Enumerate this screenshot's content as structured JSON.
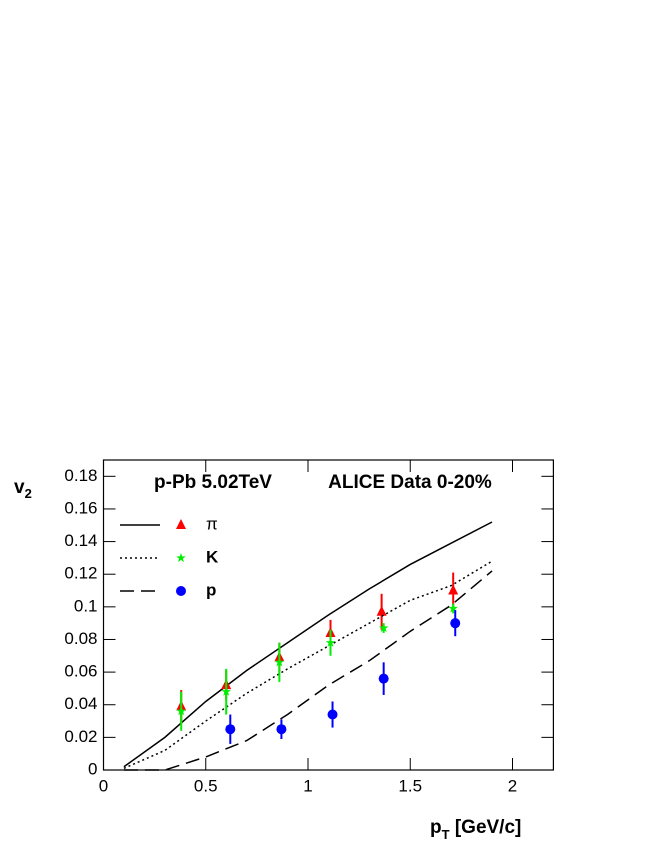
{
  "chart_data": {
    "type": "scatter",
    "annotations": [
      "p-Pb 5.02TeV",
      "ALICE Data 0-20%"
    ],
    "ylabel": [
      "v",
      "2"
    ],
    "xlabel": [
      "p",
      "T",
      " [GeV/c]"
    ],
    "xlim": [
      0,
      2.2
    ],
    "ylim": [
      0,
      0.19
    ],
    "xticks": [
      0,
      0.5,
      1,
      1.5,
      2
    ],
    "yticks": [
      0,
      0.02,
      0.04,
      0.06,
      0.08,
      0.1,
      0.12,
      0.14,
      0.16,
      0.18
    ],
    "series": [
      {
        "name": "π",
        "color": "#ff0000",
        "marker": "triangle",
        "x": [
          0.38,
          0.6,
          0.86,
          1.11,
          1.36,
          1.71
        ],
        "values": [
          0.039,
          0.052,
          0.069,
          0.084,
          0.097,
          0.11
        ],
        "errors": [
          0.01,
          0.009,
          0.009,
          0.008,
          0.011,
          0.011
        ],
        "model": {
          "dash": "solid",
          "x": [
            0.1,
            0.3,
            0.5,
            0.7,
            0.9,
            1.1,
            1.3,
            1.5,
            1.7,
            1.9
          ],
          "values": [
            0.002,
            0.02,
            0.042,
            0.061,
            0.078,
            0.095,
            0.111,
            0.126,
            0.139,
            0.152
          ]
        }
      },
      {
        "name": "K",
        "color": "#00ee00",
        "marker": "star",
        "x": [
          0.38,
          0.6,
          0.86,
          1.11,
          1.37,
          1.71
        ],
        "values": [
          0.036,
          0.048,
          0.066,
          0.078,
          0.087,
          0.099
        ],
        "errors": [
          0.012,
          0.014,
          0.012,
          0.008,
          0.003,
          0.003
        ],
        "model": {
          "dash": "dotted",
          "x": [
            0.1,
            0.3,
            0.5,
            0.7,
            0.9,
            1.1,
            1.3,
            1.5,
            1.7,
            1.9
          ],
          "values": [
            0.001,
            0.012,
            0.03,
            0.047,
            0.062,
            0.076,
            0.09,
            0.104,
            0.113,
            0.128
          ]
        }
      },
      {
        "name": "p",
        "color": "#0000ff",
        "marker": "circle",
        "x": [
          0.62,
          0.87,
          1.12,
          1.37,
          1.72
        ],
        "values": [
          0.025,
          0.025,
          0.034,
          0.056,
          0.09
        ],
        "errors": [
          0.009,
          0.006,
          0.008,
          0.01,
          0.008
        ],
        "model": {
          "dash": "dashed",
          "x": [
            0.1,
            0.3,
            0.5,
            0.7,
            0.9,
            1.1,
            1.3,
            1.5,
            1.7,
            1.9
          ],
          "values": [
            0,
            0,
            0.008,
            0.018,
            0.034,
            0.052,
            0.067,
            0.085,
            0.101,
            0.122
          ]
        }
      }
    ]
  }
}
